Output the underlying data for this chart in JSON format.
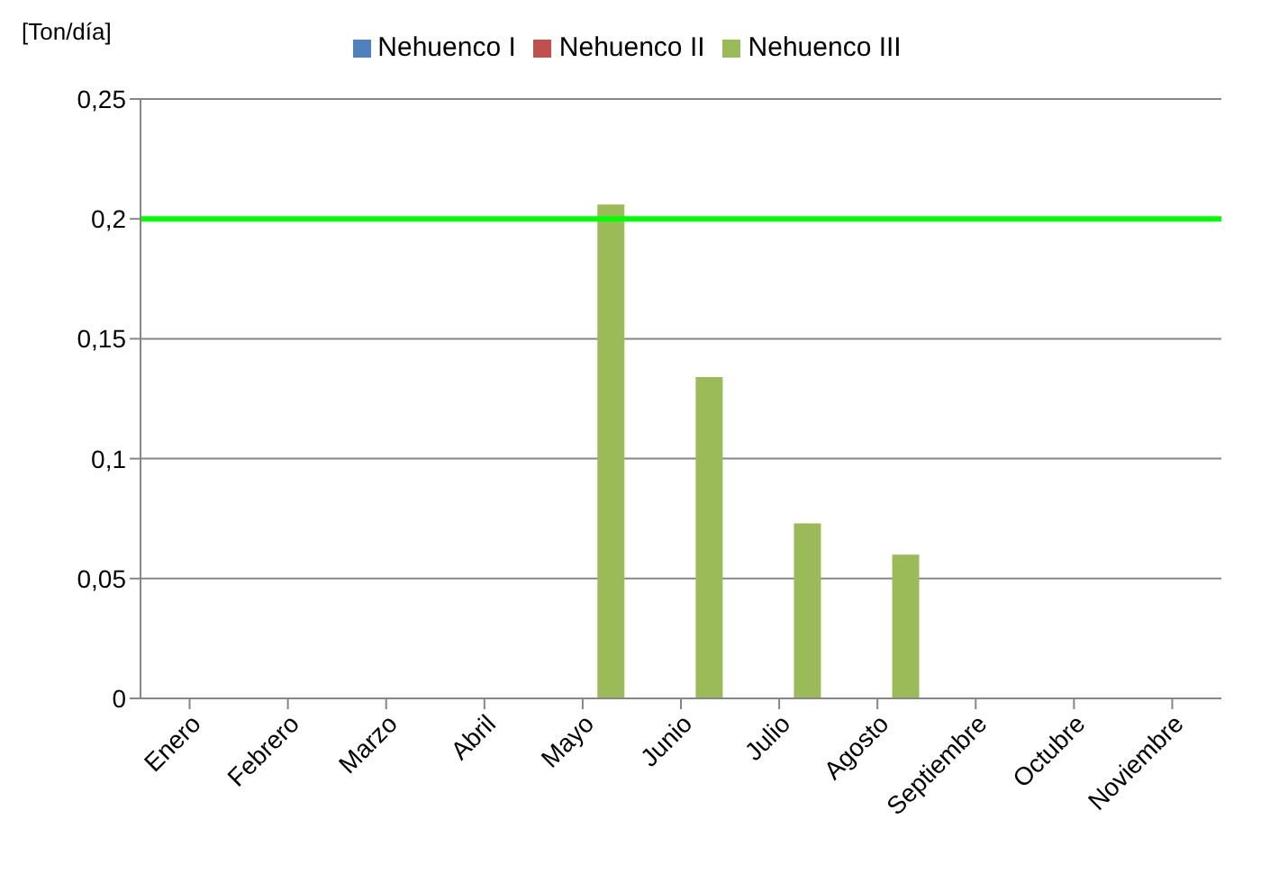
{
  "chart_data": {
    "type": "bar",
    "ylabel": "[Ton/día]",
    "categories": [
      "Enero",
      "Febrero",
      "Marzo",
      "Abril",
      "Mayo",
      "Junio",
      "Julio",
      "Agosto",
      "Septiembre",
      "Octubre",
      "Noviembre"
    ],
    "series": [
      {
        "name": "Nehuenco I",
        "color": "#4f81bd",
        "values": [
          null,
          null,
          null,
          null,
          null,
          null,
          null,
          null,
          null,
          null,
          null
        ]
      },
      {
        "name": "Nehuenco II",
        "color": "#c0504d",
        "values": [
          null,
          null,
          null,
          null,
          null,
          null,
          null,
          null,
          null,
          null,
          null
        ]
      },
      {
        "name": "Nehuenco III",
        "color": "#9bbb59",
        "values": [
          null,
          null,
          null,
          null,
          0.206,
          0.134,
          0.073,
          0.06,
          null,
          null,
          null
        ]
      }
    ],
    "ylim": [
      0,
      0.25
    ],
    "yticks": [
      {
        "value": 0,
        "label": "0"
      },
      {
        "value": 0.05,
        "label": "0,05"
      },
      {
        "value": 0.1,
        "label": "0,1"
      },
      {
        "value": 0.15,
        "label": "0,15"
      },
      {
        "value": 0.2,
        "label": "0,2"
      },
      {
        "value": 0.25,
        "label": "0,25"
      }
    ],
    "grid": "y",
    "legend": "top",
    "ref_lines": [
      {
        "axis": "y",
        "value": 0.2,
        "color": "#00ff00"
      }
    ]
  }
}
